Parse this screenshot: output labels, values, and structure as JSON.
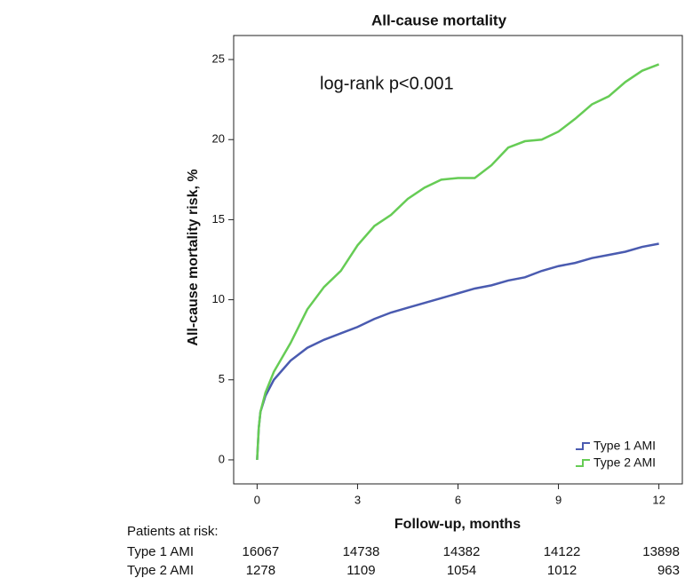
{
  "chart_data": {
    "type": "line",
    "title": "All-cause mortality",
    "x_label": "Follow-up, months",
    "y_label": "All-cause mortality risk, %",
    "annotation": "log-rank p<0.001",
    "legend_position": "lower right",
    "xlim": [
      -0.7,
      12.7
    ],
    "ylim": [
      -1.5,
      26.5
    ],
    "xticks": [
      0,
      3,
      6,
      9,
      12
    ],
    "yticks": [
      0,
      5,
      10,
      15,
      20,
      25
    ],
    "x": [
      0,
      0.05,
      0.1,
      0.25,
      0.5,
      1,
      1.5,
      2,
      2.5,
      3,
      3.5,
      4,
      4.5,
      5,
      5.5,
      6,
      6.5,
      7,
      7.5,
      8,
      8.5,
      9,
      9.5,
      10,
      10.5,
      11,
      11.5,
      12
    ],
    "series": [
      {
        "name": "Type 1 AMI",
        "color": "#4a5bb0",
        "values": [
          0,
          2,
          3,
          4,
          5,
          6.2,
          7,
          7.5,
          7.9,
          8.3,
          8.8,
          9.2,
          9.5,
          9.8,
          10.1,
          10.4,
          10.7,
          10.9,
          11.2,
          11.4,
          11.8,
          12.1,
          12.3,
          12.6,
          12.8,
          13,
          13.3,
          13.5
        ]
      },
      {
        "name": "Type 2 AMI",
        "color": "#66cc55",
        "values": [
          0,
          2,
          3,
          4.2,
          5.5,
          7.3,
          9.4,
          10.8,
          11.8,
          13.4,
          14.6,
          15.3,
          16.3,
          17,
          17.5,
          17.6,
          17.6,
          18.4,
          19.5,
          19.9,
          20,
          20.5,
          21.3,
          22.2,
          22.7,
          23.6,
          24.3,
          24.7
        ]
      }
    ],
    "risk_table": {
      "title": "Patients at risk:",
      "rows": [
        {
          "label": "Type 1 AMI",
          "values": [
            16067,
            14738,
            14382,
            14122,
            13898
          ]
        },
        {
          "label": "Type 2 AMI",
          "values": [
            1278,
            1109,
            1054,
            1012,
            963
          ]
        }
      ]
    }
  }
}
